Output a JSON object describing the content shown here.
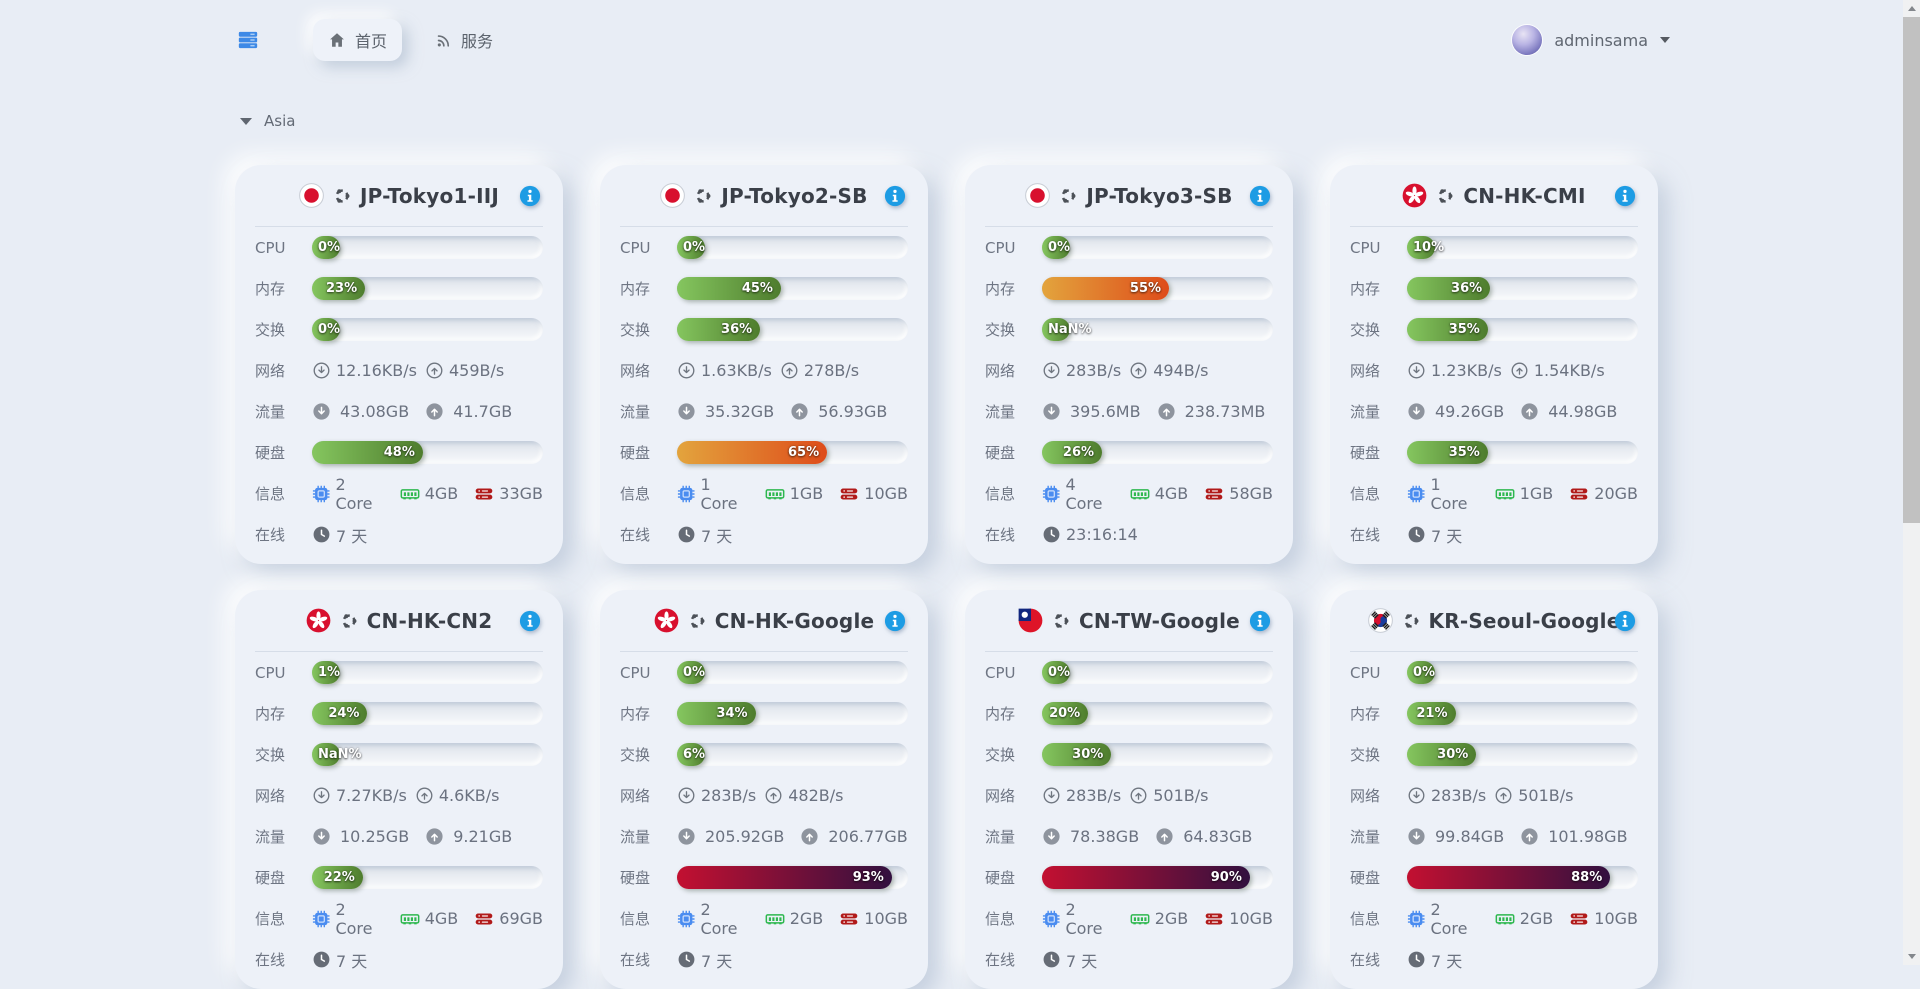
{
  "navbar": {
    "menu_icon": "server-stack-icon",
    "tabs": [
      {
        "label": "首页",
        "icon": "home-icon",
        "active": true
      },
      {
        "label": "服务",
        "icon": "rss-icon",
        "active": false
      }
    ],
    "user": {
      "name": "adminsama",
      "avatar": "anime-avatar",
      "caret": "caret-down-icon"
    }
  },
  "section": {
    "title": "Asia",
    "collapse_icon": "triangle-down-icon"
  },
  "row_labels": {
    "cpu": "CPU",
    "mem": "内存",
    "swap": "交换",
    "net": "网络",
    "traffic": "流量",
    "disk": "硬盘",
    "info": "信息",
    "online": "在线"
  },
  "colors": {
    "page_bg": "#e8edf5",
    "card_bg": "#edf1f8",
    "bar_green": [
      "#85c65f",
      "#4e7c2d"
    ],
    "bar_orange": [
      "#e3a43d",
      "#de4c1a"
    ],
    "bar_red": [
      "#c31031",
      "#32103f"
    ],
    "info_icon_blue": "#1d9ce4",
    "chip_blue": "#4a8cf0",
    "ram_green": "#2eb84f",
    "disk_red": "#b11a1a",
    "nav_icon_blue": "#3d89e6"
  },
  "servers": [
    {
      "name": "JP-Tokyo1-IIJ",
      "flag": "jp",
      "os": "ubuntu",
      "bars": {
        "cpu": {
          "label": "0%",
          "pct": 0,
          "level": "g"
        },
        "mem": {
          "label": "23%",
          "pct": 23,
          "level": "g"
        },
        "swap": {
          "label": "0%",
          "pct": 0,
          "level": "g"
        },
        "disk": {
          "label": "48%",
          "pct": 48,
          "level": "g"
        }
      },
      "net": {
        "down": "12.16KB/s",
        "up": "459B/s"
      },
      "traffic": {
        "down": "43.08GB",
        "up": "41.7GB"
      },
      "info": {
        "cores": "2 Core",
        "ram": "4GB",
        "disk": "33GB"
      },
      "online": "7 天"
    },
    {
      "name": "JP-Tokyo2-SB",
      "flag": "jp",
      "os": "ubuntu",
      "bars": {
        "cpu": {
          "label": "0%",
          "pct": 0,
          "level": "g"
        },
        "mem": {
          "label": "45%",
          "pct": 45,
          "level": "g"
        },
        "swap": {
          "label": "36%",
          "pct": 36,
          "level": "g"
        },
        "disk": {
          "label": "65%",
          "pct": 65,
          "level": "o"
        }
      },
      "net": {
        "down": "1.63KB/s",
        "up": "278B/s"
      },
      "traffic": {
        "down": "35.32GB",
        "up": "56.93GB"
      },
      "info": {
        "cores": "1 Core",
        "ram": "1GB",
        "disk": "10GB"
      },
      "online": "7 天"
    },
    {
      "name": "JP-Tokyo3-SB",
      "flag": "jp",
      "os": "ubuntu",
      "bars": {
        "cpu": {
          "label": "0%",
          "pct": 0,
          "level": "g"
        },
        "mem": {
          "label": "55%",
          "pct": 55,
          "level": "o"
        },
        "swap": {
          "label": "NaN%",
          "pct": 9,
          "level": "g"
        },
        "disk": {
          "label": "26%",
          "pct": 26,
          "level": "g"
        }
      },
      "net": {
        "down": "283B/s",
        "up": "494B/s"
      },
      "traffic": {
        "down": "395.6MB",
        "up": "238.73MB"
      },
      "info": {
        "cores": "4 Core",
        "ram": "4GB",
        "disk": "58GB"
      },
      "online": "23:16:14"
    },
    {
      "name": "CN-HK-CMI",
      "flag": "hk",
      "os": "ubuntu",
      "bars": {
        "cpu": {
          "label": "10%",
          "pct": 10,
          "level": "g"
        },
        "mem": {
          "label": "36%",
          "pct": 36,
          "level": "g"
        },
        "swap": {
          "label": "35%",
          "pct": 35,
          "level": "g"
        },
        "disk": {
          "label": "35%",
          "pct": 35,
          "level": "g"
        }
      },
      "net": {
        "down": "1.23KB/s",
        "up": "1.54KB/s"
      },
      "traffic": {
        "down": "49.26GB",
        "up": "44.98GB"
      },
      "info": {
        "cores": "1 Core",
        "ram": "1GB",
        "disk": "20GB"
      },
      "online": "7 天"
    },
    {
      "name": "CN-HK-CN2",
      "flag": "hk",
      "os": "ubuntu",
      "bars": {
        "cpu": {
          "label": "1%",
          "pct": 1,
          "level": "g"
        },
        "mem": {
          "label": "24%",
          "pct": 24,
          "level": "g"
        },
        "swap": {
          "label": "NaN%",
          "pct": 9,
          "level": "g"
        },
        "disk": {
          "label": "22%",
          "pct": 22,
          "level": "g"
        }
      },
      "net": {
        "down": "7.27KB/s",
        "up": "4.6KB/s"
      },
      "traffic": {
        "down": "10.25GB",
        "up": "9.21GB"
      },
      "info": {
        "cores": "2 Core",
        "ram": "4GB",
        "disk": "69GB"
      },
      "online": "7 天"
    },
    {
      "name": "CN-HK-Google",
      "flag": "hk",
      "os": "ubuntu",
      "bars": {
        "cpu": {
          "label": "0%",
          "pct": 0,
          "level": "g"
        },
        "mem": {
          "label": "34%",
          "pct": 34,
          "level": "g"
        },
        "swap": {
          "label": "6%",
          "pct": 6,
          "level": "g"
        },
        "disk": {
          "label": "93%",
          "pct": 93,
          "level": "r"
        }
      },
      "net": {
        "down": "283B/s",
        "up": "482B/s"
      },
      "traffic": {
        "down": "205.92GB",
        "up": "206.77GB"
      },
      "info": {
        "cores": "2 Core",
        "ram": "2GB",
        "disk": "10GB"
      },
      "online": "7 天"
    },
    {
      "name": "CN-TW-Google",
      "flag": "tw",
      "os": "ubuntu",
      "bars": {
        "cpu": {
          "label": "0%",
          "pct": 0,
          "level": "g"
        },
        "mem": {
          "label": "20%",
          "pct": 20,
          "level": "g"
        },
        "swap": {
          "label": "30%",
          "pct": 30,
          "level": "g"
        },
        "disk": {
          "label": "90%",
          "pct": 90,
          "level": "r"
        }
      },
      "net": {
        "down": "283B/s",
        "up": "501B/s"
      },
      "traffic": {
        "down": "78.38GB",
        "up": "64.83GB"
      },
      "info": {
        "cores": "2 Core",
        "ram": "2GB",
        "disk": "10GB"
      },
      "online": "7 天"
    },
    {
      "name": "KR-Seoul-Google",
      "flag": "kr",
      "os": "ubuntu",
      "bars": {
        "cpu": {
          "label": "0%",
          "pct": 0,
          "level": "g"
        },
        "mem": {
          "label": "21%",
          "pct": 21,
          "level": "g"
        },
        "swap": {
          "label": "30%",
          "pct": 30,
          "level": "g"
        },
        "disk": {
          "label": "88%",
          "pct": 88,
          "level": "r"
        }
      },
      "net": {
        "down": "283B/s",
        "up": "501B/s"
      },
      "traffic": {
        "down": "99.84GB",
        "up": "101.98GB"
      },
      "info": {
        "cores": "2 Core",
        "ram": "2GB",
        "disk": "10GB"
      },
      "online": "7 天"
    }
  ]
}
